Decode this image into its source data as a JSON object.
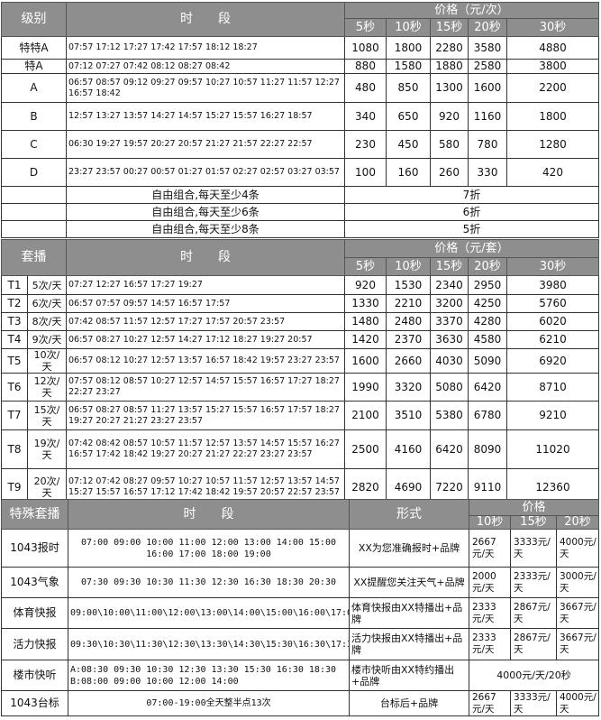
{
  "section1": {
    "header": {
      "level": "级别",
      "time": "时　　段",
      "price_title": "价格（元/次）",
      "durations": [
        "5秒",
        "10秒",
        "15秒",
        "20秒",
        "30秒"
      ]
    },
    "rows": [
      {
        "level": "特特A",
        "times": "07:57  17:12  17:27  17:42  17:57  18:12  18:27",
        "prices": [
          "1080",
          "1800",
          "2280",
          "3580",
          "4880"
        ]
      },
      {
        "level": "特A",
        "times": "07:12  07:27  07:42  08:12  08:27  08:42",
        "prices": [
          "880",
          "1580",
          "1880",
          "2580",
          "3800"
        ]
      },
      {
        "level": "A",
        "times": "06:57  08:57  09:12  09:27  09:57  10:27  10:57  11:27  11:57  12:27  16:57  18:42",
        "prices": [
          "480",
          "850",
          "1300",
          "1600",
          "2200"
        ]
      },
      {
        "level": "B",
        "times": "12:57  13:27  13:57  14:27  14:57  15:27  15:57  16:27  18:57",
        "prices": [
          "340",
          "650",
          "920",
          "1160",
          "1800"
        ]
      },
      {
        "level": "C",
        "times": "06:30 19:27  19:57  20:27  20:57  21:27  21:57  22:27  22:57",
        "prices": [
          "230",
          "450",
          "580",
          "780",
          "1280"
        ]
      },
      {
        "level": "D",
        "times": "23:27  23:57  00:27  00:57  01:27  01:57  02:27  02:57  03:27  03:57",
        "prices": [
          "100",
          "160",
          "260",
          "330",
          "420"
        ]
      }
    ],
    "discounts": [
      {
        "rule": "自由组合,每天至少4条",
        "discount": "7折"
      },
      {
        "rule": "自由组合,每天至少6条",
        "discount": "6折"
      },
      {
        "rule": "自由组合,每天至少8条",
        "discount": "5折"
      }
    ]
  },
  "section2": {
    "header": {
      "package": "套播",
      "time": "时　　段",
      "price_title": "价格（元/套）",
      "durations": [
        "5秒",
        "10秒",
        "15秒",
        "20秒",
        "30秒"
      ]
    },
    "rows": [
      {
        "id": "T1",
        "count": "5次/天",
        "times": "07:27 12:27 16:57  17:27 19:27",
        "prices": [
          "920",
          "1530",
          "2340",
          "2950",
          "3980"
        ]
      },
      {
        "id": "T2",
        "count": "6次/天",
        "times": "06:57 07:57 09:57 14:57 16:57 17:57",
        "prices": [
          "1330",
          "2210",
          "3200",
          "4250",
          "5760"
        ]
      },
      {
        "id": "T3",
        "count": "8次/天",
        "times": "07:42 08:57 11:57 12:57 17:27 17:57 20:57 23:57",
        "prices": [
          "1480",
          "2480",
          "3370",
          "4280",
          "6020"
        ]
      },
      {
        "id": "T4",
        "count": "9次/天",
        "times": "06:57 08:27 10:27 12:57 14:27 17:12 18:27 19:27 20:57",
        "prices": [
          "1420",
          "2370",
          "3630",
          "4580",
          "6210"
        ]
      },
      {
        "id": "T5",
        "count": "10次/天",
        "times": "06:57 08:12 10:27 12:57 13:57 16:57 18:42 19:57 23:27 23:57",
        "prices": [
          "1600",
          "2660",
          "4030",
          "5090",
          "6920"
        ]
      },
      {
        "id": "T6",
        "count": "12次/天",
        "times": "07:57 08:12 08:57 10:27 12:57 14:57 15:57 16:57 17:27 18:27 22:27 23:27",
        "prices": [
          "1990",
          "3320",
          "5080",
          "6420",
          "8710"
        ]
      },
      {
        "id": "T7",
        "count": "15次/天",
        "times": "06:57 08:27 08:57 11:27 13:57 15:27 15:57 16:57 17:57 18:27 19:27 20:27 21:27 23:27 23:57",
        "prices": [
          "2100",
          "3510",
          "5380",
          "6780",
          "9210"
        ]
      },
      {
        "id": "T8",
        "count": "19次/天",
        "times": "07:42 08:42 08:57 10:57 11:57 12:57 13:57 14:57 15:57 16:27 16:57 17:42 18:42 19:27 20:27 21:27 22:27 23:27 23:57",
        "prices": [
          "2500",
          "4160",
          "6420",
          "8090",
          "11020"
        ]
      },
      {
        "id": "T9",
        "count": "20次/天",
        "times": "07:12 07:42 08:27 09:57 10:27 10:57 11:57 12:57 13:57 14:57 15:27 15:57 16:57 17:12 17:42 18:42 19:57 20:57 22:57 23:57",
        "prices": [
          "2820",
          "4690",
          "7220",
          "9110",
          "12360"
        ]
      }
    ]
  },
  "section3": {
    "header": {
      "name": "特殊套播",
      "time": "时　　段",
      "form": "形式",
      "price_title": "价格",
      "durations": [
        "10秒",
        "15秒",
        "20秒"
      ]
    },
    "rows": [
      {
        "name": "1043报时",
        "times": "07:00  09:00 10:00 11:00  12:00 13:00 14:00 15:00 16:00 17:00 18:00 19:00",
        "form": "XX为您准确报时+品牌",
        "prices": [
          "2667元/天",
          "3333元/天",
          "4000元/天"
        ]
      },
      {
        "name": "1043气象",
        "times": "07:30 09:30 10:30 11:30 12:30 16:30 18:30 20:30",
        "form": "XX提醒您关注天气+品牌",
        "prices": [
          "2000元/天",
          "2333元/天",
          "3000元/天"
        ]
      },
      {
        "name": "体育快报",
        "times": "09:00\\10:00\\11:00\\12:00\\13:00\\14:00\\15:00\\16:00\\17:00\\18:00",
        "form": "体育快报由XX特播出+品牌",
        "prices": [
          "2333元/天",
          "2867元/天",
          "3667元/天"
        ]
      },
      {
        "name": "活力快报",
        "times": "09:30\\10:30\\11:30\\12:30\\13:30\\14:30\\15:30\\16:30\\17:30\\18:30",
        "form": "活力快报由XX特播出+品牌",
        "prices": [
          "2333元/天",
          "2867元/天",
          "3667元/天"
        ]
      },
      {
        "name": "楼市快听",
        "times": "A:08:30 09:30 10:30 12:30 13:30 15:30 16:30 18:30         B:08:00 09:00 10:00 12:00 14:00",
        "form": "楼市快听由XX特约播出+品牌",
        "price_merged": "4000元/天/20秒"
      },
      {
        "name": "1043台标",
        "times": "07:00-19:00全天整半点13次",
        "form": "台标后+品牌",
        "prices": [
          "2667元/天",
          "3333元/天",
          "4000元/天"
        ]
      }
    ]
  },
  "colors": {
    "header_bg": "#8e8e8e",
    "header_text": "#ffffff",
    "border": "#333333"
  }
}
